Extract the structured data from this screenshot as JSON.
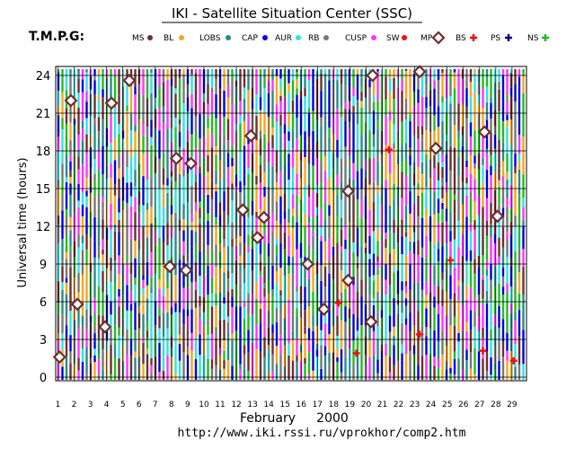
{
  "header": {
    "title": "IKI - Satellite Situation Center (SSC)",
    "tmpg_label": "T.M.P.G:"
  },
  "footer": {
    "url": "http://www.iki.rssi.ru/vprokhor/comp2.htm"
  },
  "chart_data": {
    "type": "scatter",
    "title": "IKI - Satellite Situation Center (SSC)",
    "ylabel": "Universal time (hours)",
    "xlabel_month": "February",
    "xlabel_year": "2000",
    "ylim": [
      0,
      24
    ],
    "y_ticks": [
      "0",
      "3",
      "6",
      "9",
      "12",
      "15",
      "18",
      "21",
      "24"
    ],
    "x_ticks": [
      "1",
      "2",
      "3",
      "4",
      "5",
      "6",
      "7",
      "8",
      "9",
      "10",
      "11",
      "12",
      "13",
      "14",
      "15",
      "16",
      "17",
      "18",
      "19",
      "20",
      "21",
      "22",
      "23",
      "24",
      "25",
      "26",
      "27",
      "28",
      "29"
    ],
    "grid": true,
    "legend": [
      {
        "label": "MS",
        "color": "#6b2f2f",
        "shape": "dot"
      },
      {
        "label": "BL",
        "color": "#f5a623",
        "shape": "dot"
      },
      {
        "label": "LOBS",
        "color": "#2a8a8a",
        "shape": "dot"
      },
      {
        "label": "CAP",
        "color": "#0000dd",
        "shape": "dot"
      },
      {
        "label": "AUR",
        "color": "#33e0e0",
        "shape": "dot"
      },
      {
        "label": "RB",
        "color": "#777777",
        "shape": "dot"
      },
      {
        "label": "CUSP",
        "color": "#ff33ff",
        "shape": "dot"
      },
      {
        "label": "SW",
        "color": "#ee1111",
        "shape": "dot"
      },
      {
        "label": "MP",
        "color": "#6b2f2f",
        "shape": "diamond"
      },
      {
        "label": "BS",
        "color": "#ee1111",
        "shape": "cross"
      },
      {
        "label": "PS",
        "color": "#000080",
        "shape": "cross"
      },
      {
        "label": "NS",
        "color": "#22bb22",
        "shape": "cross"
      }
    ],
    "stripe_colors": [
      "#6b2f2f",
      "#33e0e0",
      "#0000dd",
      "#777777",
      "#ff33ff",
      "#2a8a8a",
      "#22bb22",
      "#f5a623"
    ],
    "series": [
      {
        "name": "MP",
        "points": [
          [
            1.1,
            1.6
          ],
          [
            1.8,
            22.0
          ],
          [
            2.2,
            5.8
          ],
          [
            3.9,
            4.0
          ],
          [
            4.3,
            21.8
          ],
          [
            5.4,
            23.6
          ],
          [
            7.9,
            8.8
          ],
          [
            8.3,
            17.4
          ],
          [
            8.9,
            8.5
          ],
          [
            9.2,
            17.0
          ],
          [
            12.4,
            13.3
          ],
          [
            12.9,
            19.2
          ],
          [
            13.3,
            11.1
          ],
          [
            13.7,
            12.7
          ],
          [
            16.4,
            9.0
          ],
          [
            17.4,
            5.4
          ],
          [
            18.9,
            7.7
          ],
          [
            18.9,
            14.8
          ],
          [
            20.3,
            4.4
          ],
          [
            20.4,
            24.0
          ],
          [
            23.3,
            24.3
          ],
          [
            24.3,
            18.2
          ],
          [
            27.3,
            19.5
          ],
          [
            28.1,
            12.8
          ]
        ]
      },
      {
        "name": "BS",
        "points": [
          [
            18.3,
            5.9
          ],
          [
            19.4,
            1.9
          ],
          [
            21.4,
            18.1
          ],
          [
            23.3,
            3.4
          ],
          [
            25.2,
            9.3
          ],
          [
            27.2,
            2.1
          ],
          [
            29.1,
            1.3
          ]
        ]
      }
    ]
  }
}
